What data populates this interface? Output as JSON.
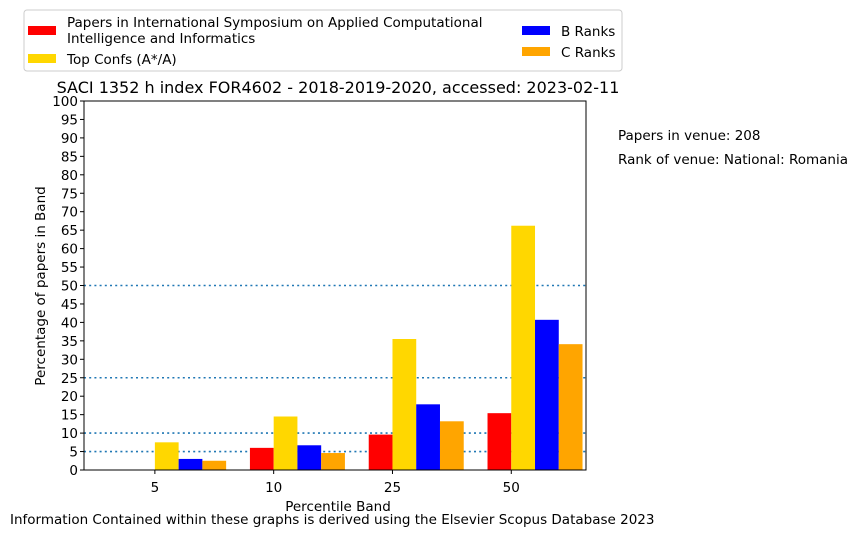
{
  "footer": "Information Contained within these graphs is derived using the Elsevier Scopus Database 2023",
  "side_notes": {
    "papers": "Papers in venue: 208",
    "rank": "Rank of venue: National: Romania"
  },
  "colors": {
    "venue": "#ff0000",
    "top": "#ffd700",
    "b": "#0000ff",
    "c": "#ffa500",
    "reference_line": "#1f77b4"
  },
  "chart_data": {
    "type": "bar",
    "title": "SACI 1352 h index FOR4602 - 2018-2019-2020, accessed: 2023-02-11",
    "xlabel": "Percentile Band",
    "ylabel": "Percentage of papers in Band",
    "categories": [
      "5",
      "10",
      "25",
      "50"
    ],
    "ylim": [
      0,
      100
    ],
    "yticks": [
      0,
      5,
      10,
      15,
      20,
      25,
      30,
      35,
      40,
      45,
      50,
      55,
      60,
      65,
      70,
      75,
      80,
      85,
      90,
      95,
      100
    ],
    "reference_lines": [
      5,
      10,
      25,
      50
    ],
    "legend_position": "top-left, outside plot",
    "series": [
      {
        "name": "Papers in International Symposium on Applied Computational Intelligence and Informatics",
        "color": "#ff0000",
        "values": [
          0,
          6.0,
          9.6,
          15.4
        ]
      },
      {
        "name": "Top Confs (A*/A)",
        "color": "#ffd700",
        "values": [
          7.5,
          14.5,
          35.5,
          66.2
        ]
      },
      {
        "name": "B Ranks",
        "color": "#0000ff",
        "values": [
          3.0,
          6.7,
          17.8,
          40.7
        ]
      },
      {
        "name": "C Ranks",
        "color": "#ffa500",
        "values": [
          2.5,
          4.6,
          13.2,
          34.1
        ]
      }
    ]
  }
}
